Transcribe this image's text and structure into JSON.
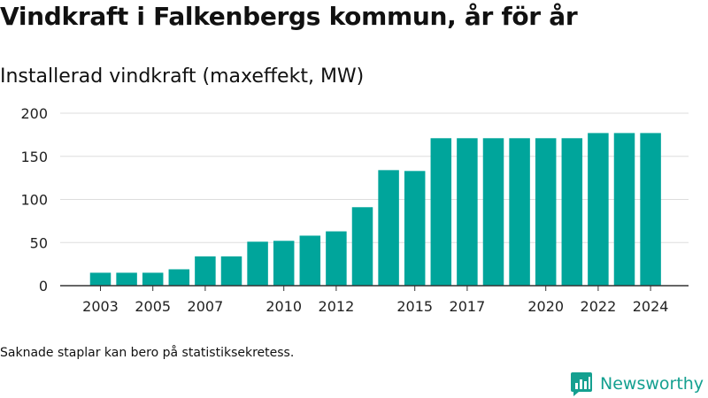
{
  "header": {
    "title": "Vindkraft i Falkenbergs kommun, år för år"
  },
  "footer": {
    "note": "Saknade staplar kan bero på statistiksekretess.",
    "brand": "Newsworthy"
  },
  "colors": {
    "bar": "#00a59b",
    "grid": "#dddddd",
    "axis": "#333333",
    "brand": "#14a090"
  },
  "chart_data": {
    "type": "bar",
    "title": "Installerad vindkraft (maxeffekt, MW)",
    "xlabel": "",
    "ylabel": "",
    "categories": [
      2003,
      2004,
      2005,
      2006,
      2007,
      2008,
      2009,
      2010,
      2011,
      2012,
      2013,
      2014,
      2015,
      2016,
      2017,
      2018,
      2019,
      2020,
      2021,
      2022,
      2023,
      2024
    ],
    "values": [
      15,
      15,
      15,
      19,
      34,
      34,
      51,
      52,
      58,
      63,
      91,
      134,
      133,
      171,
      171,
      171,
      171,
      171,
      171,
      177,
      177,
      177
    ],
    "xticks": [
      2003,
      2005,
      2007,
      2010,
      2012,
      2015,
      2017,
      2020,
      2022,
      2024
    ],
    "yticks": [
      0,
      50,
      100,
      150,
      200
    ],
    "ylim": [
      0,
      200
    ],
    "grid": true,
    "legend": "none"
  }
}
